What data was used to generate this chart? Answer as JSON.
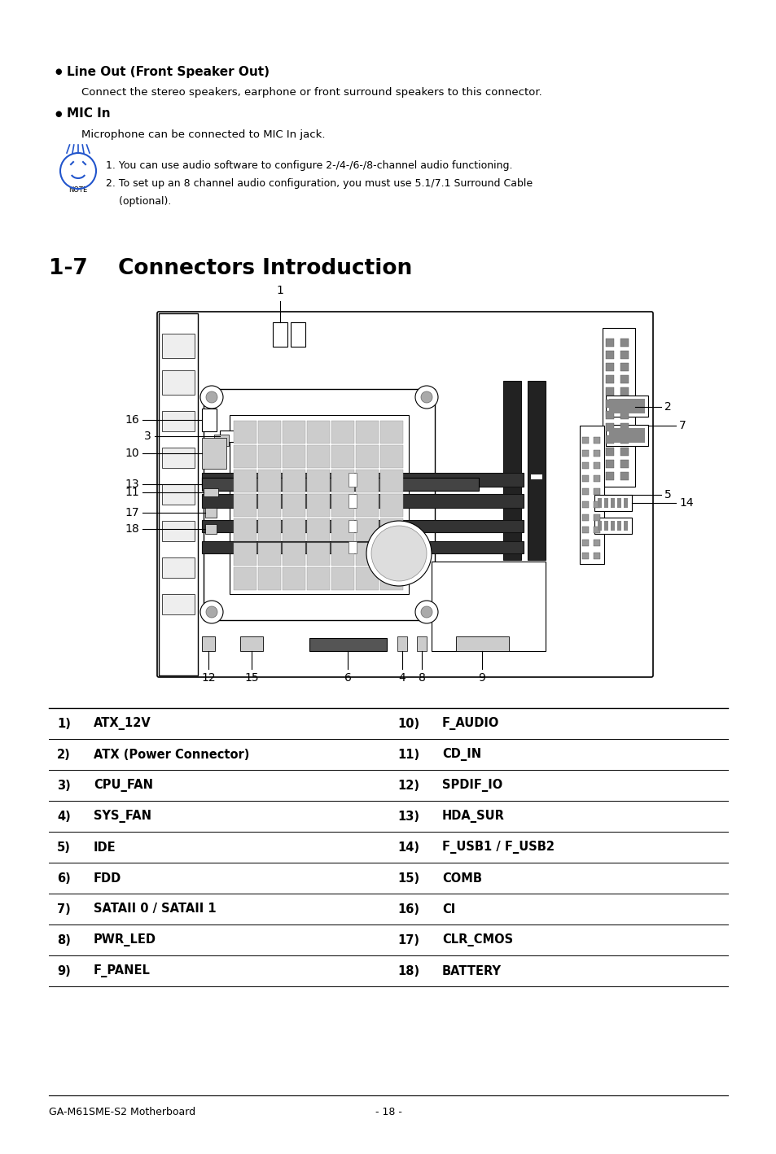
{
  "background_color": "#ffffff",
  "page_width": 9.54,
  "page_height": 14.18,
  "top_section": {
    "bullet1_title": "Line Out (Front Speaker Out)",
    "bullet1_desc": "Connect the stereo speakers, earphone or front surround speakers to this connector.",
    "bullet2_title": "MIC In",
    "bullet2_desc": "Microphone can be connected to MIC In jack.",
    "note1": "1. You can use audio software to configure 2-/4-/6-/8-channel audio functioning.",
    "note2": "2. To set up an 8 channel audio configuration, you must use 5.1/7.1 Surround Cable",
    "note2b": "    (optional)."
  },
  "section_title_num": "1-7",
  "section_title_text": "Connectors Introduction",
  "table_left": [
    [
      "1)",
      "ATX_12V"
    ],
    [
      "2)",
      "ATX (Power Connector)"
    ],
    [
      "3)",
      "CPU_FAN"
    ],
    [
      "4)",
      "SYS_FAN"
    ],
    [
      "5)",
      "IDE"
    ],
    [
      "6)",
      "FDD"
    ],
    [
      "7)",
      "SATAII 0 / SATAII 1"
    ],
    [
      "8)",
      "PWR_LED"
    ],
    [
      "9)",
      "F_PANEL"
    ]
  ],
  "table_right": [
    [
      "10)",
      "F_AUDIO"
    ],
    [
      "11)",
      "CD_IN"
    ],
    [
      "12)",
      "SPDIF_IO"
    ],
    [
      "13)",
      "HDA_SUR"
    ],
    [
      "14)",
      "F_USB1 / F_USB2"
    ],
    [
      "15)",
      "COMB"
    ],
    [
      "16)",
      "CI"
    ],
    [
      "17)",
      "CLR_CMOS"
    ],
    [
      "18)",
      "BATTERY"
    ]
  ],
  "footer_left": "GA-M61SME-S2 Motherboard",
  "footer_center": "- 18 -"
}
